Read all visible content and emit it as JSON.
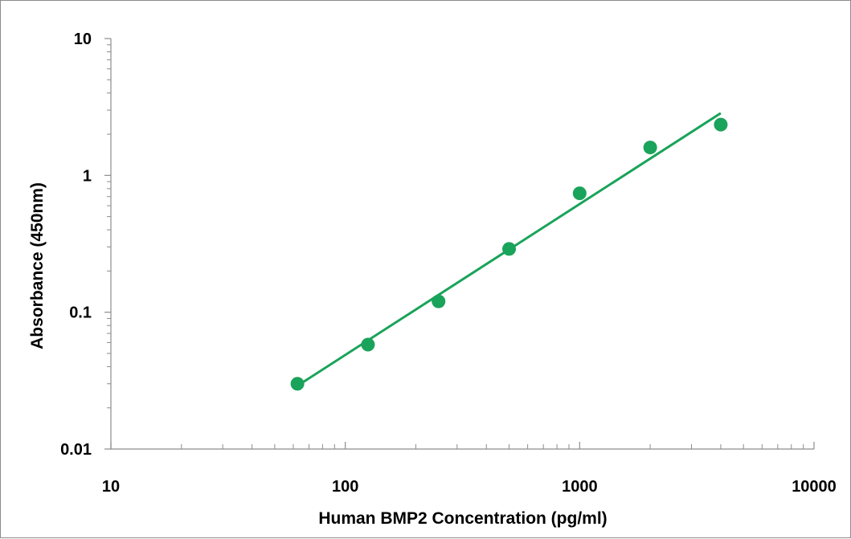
{
  "chart_data": {
    "type": "scatter",
    "title": "",
    "xlabel": "Human BMP2 Concentration (pg/ml)",
    "ylabel": "Absorbance (450nm)",
    "x_scale": "log",
    "y_scale": "log",
    "xlim": [
      10,
      10000
    ],
    "ylim": [
      0.01,
      10
    ],
    "x_ticks": [
      "10",
      "100",
      "1000",
      "10000"
    ],
    "y_ticks": [
      "10",
      "1",
      "0.1",
      "0.01"
    ],
    "grid": false,
    "legend": "none",
    "color": "#1aa35a",
    "series": [
      {
        "points": [
          {
            "x": 62.5,
            "y": 0.03
          },
          {
            "x": 125,
            "y": 0.058
          },
          {
            "x": 250,
            "y": 0.12
          },
          {
            "x": 500,
            "y": 0.29
          },
          {
            "x": 1000,
            "y": 0.74
          },
          {
            "x": 2000,
            "y": 1.6
          },
          {
            "x": 4000,
            "y": 2.35
          }
        ]
      }
    ],
    "fit_line": {
      "type": "linear-log-log",
      "x": [
        62.5,
        4000
      ],
      "y": [
        0.029,
        2.85
      ]
    }
  }
}
